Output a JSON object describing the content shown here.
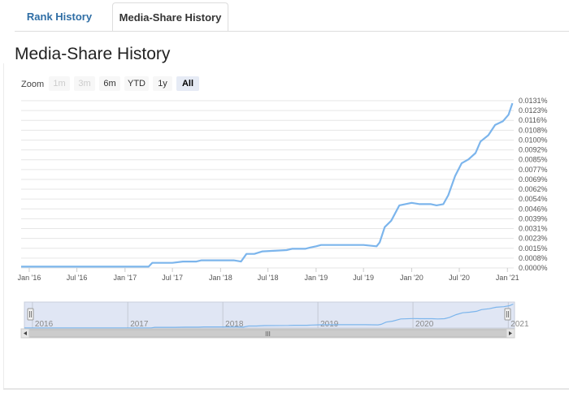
{
  "tabs": [
    {
      "label": "Rank History",
      "active": false
    },
    {
      "label": "Media-Share History",
      "active": true
    }
  ],
  "page_title": "Media-Share History",
  "zoom": {
    "label": "Zoom",
    "buttons": [
      {
        "label": "1m",
        "state": "disabled"
      },
      {
        "label": "3m",
        "state": "disabled"
      },
      {
        "label": "6m",
        "state": "normal"
      },
      {
        "label": "YTD",
        "state": "normal"
      },
      {
        "label": "1y",
        "state": "normal"
      },
      {
        "label": "All",
        "state": "active"
      }
    ]
  },
  "colors": {
    "line": "#7cb5ec",
    "grid": "#e6e6e6",
    "navigator_fill": "#d5def0"
  },
  "chart_data": {
    "type": "line",
    "title": "",
    "xlabel": "",
    "ylabel": "",
    "xlim": [
      "2015-12-01",
      "2021-01-25"
    ],
    "ylim": [
      0,
      0.0131
    ],
    "y_ticks": [
      "0.0000%",
      "0.0008%",
      "0.0015%",
      "0.0023%",
      "0.0031%",
      "0.0039%",
      "0.0046%",
      "0.0054%",
      "0.0062%",
      "0.0069%",
      "0.0077%",
      "0.0085%",
      "0.0092%",
      "0.0100%",
      "0.0108%",
      "0.0116%",
      "0.0123%",
      "0.0131%"
    ],
    "x_ticks": [
      {
        "label": "Jan '16",
        "date": "2016-01-01"
      },
      {
        "label": "Jul '16",
        "date": "2016-07-01"
      },
      {
        "label": "Jan '17",
        "date": "2017-01-01"
      },
      {
        "label": "Jul '17",
        "date": "2017-07-01"
      },
      {
        "label": "Jan '18",
        "date": "2018-01-01"
      },
      {
        "label": "Jul '18",
        "date": "2018-07-01"
      },
      {
        "label": "Jan '19",
        "date": "2019-01-01"
      },
      {
        "label": "Jul '19",
        "date": "2019-07-01"
      },
      {
        "label": "Jan '20",
        "date": "2020-01-01"
      },
      {
        "label": "Jul '20",
        "date": "2020-07-01"
      },
      {
        "label": "Jan '21",
        "date": "2021-01-01"
      }
    ],
    "grid": true,
    "legend": "none",
    "series": [
      {
        "points": [
          [
            "2015-12-01",
            0.0001
          ],
          [
            "2017-04-01",
            0.0001
          ],
          [
            "2017-04-15",
            0.0004
          ],
          [
            "2017-07-01",
            0.0004
          ],
          [
            "2017-08-10",
            0.0005
          ],
          [
            "2017-10-01",
            0.0005
          ],
          [
            "2017-10-20",
            0.0006
          ],
          [
            "2018-02-20",
            0.0006
          ],
          [
            "2018-03-20",
            0.0005
          ],
          [
            "2018-04-10",
            0.0011
          ],
          [
            "2018-05-10",
            0.0011
          ],
          [
            "2018-06-10",
            0.0013
          ],
          [
            "2018-09-10",
            0.0014
          ],
          [
            "2018-10-01",
            0.0015
          ],
          [
            "2018-11-20",
            0.0015
          ],
          [
            "2018-12-10",
            0.0016
          ],
          [
            "2019-01-01",
            0.0017
          ],
          [
            "2019-01-20",
            0.0018
          ],
          [
            "2019-07-01",
            0.0018
          ],
          [
            "2019-08-20",
            0.0017
          ],
          [
            "2019-09-01",
            0.002
          ],
          [
            "2019-09-20",
            0.0032
          ],
          [
            "2019-10-15",
            0.0037
          ],
          [
            "2019-11-15",
            0.0049
          ],
          [
            "2020-01-01",
            0.0051
          ],
          [
            "2020-02-01",
            0.005
          ],
          [
            "2020-03-15",
            0.005
          ],
          [
            "2020-04-05",
            0.0049
          ],
          [
            "2020-05-01",
            0.005
          ],
          [
            "2020-05-20",
            0.0057
          ],
          [
            "2020-06-15",
            0.0072
          ],
          [
            "2020-07-10",
            0.0082
          ],
          [
            "2020-08-05",
            0.0085
          ],
          [
            "2020-09-01",
            0.009
          ],
          [
            "2020-09-20",
            0.0099
          ],
          [
            "2020-10-20",
            0.0104
          ],
          [
            "2020-11-15",
            0.0112
          ],
          [
            "2020-12-15",
            0.0115
          ],
          [
            "2021-01-05",
            0.012
          ],
          [
            "2021-01-20",
            0.0129
          ]
        ]
      }
    ]
  },
  "navigator": {
    "year_labels": [
      "2016",
      "2017",
      "2018",
      "2019",
      "2020",
      "2021"
    ],
    "scroll_grip": "III"
  }
}
